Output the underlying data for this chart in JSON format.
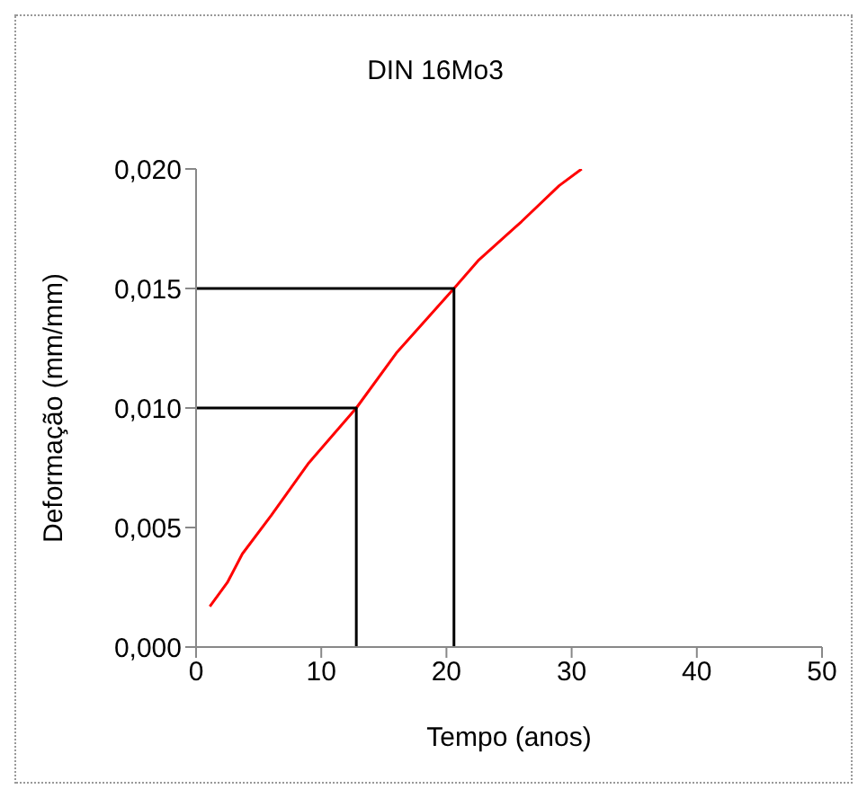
{
  "chart_data": {
    "type": "line",
    "title": "DIN 16Mo3",
    "xlabel": "Tempo (anos)",
    "ylabel": "Deformação (mm/mm)",
    "xlim": [
      0,
      50
    ],
    "xticks": [
      0,
      10,
      20,
      30,
      40,
      50
    ],
    "ylim": [
      0,
      0.02
    ],
    "yticks": [
      {
        "value": 0,
        "label": "0,000"
      },
      {
        "value": 0.005,
        "label": "0,005"
      },
      {
        "value": 0.01,
        "label": "0,010"
      },
      {
        "value": 0.015,
        "label": "0,015"
      },
      {
        "value": 0.02,
        "label": "0,020"
      }
    ],
    "marker": "none",
    "line_style": "solid",
    "series": [
      {
        "color": "#ff0000",
        "x": [
          1.1,
          2.5,
          3.7,
          6,
          9,
          12.8,
          16,
          20.6,
          22.6,
          26,
          29,
          30.8
        ],
        "values": [
          0.0017,
          0.0027,
          0.0039,
          0.0055,
          0.0077,
          0.01,
          0.0123,
          0.015,
          0.0162,
          0.0178,
          0.0193,
          0.02
        ]
      },
      {
        "color": "#000000",
        "x": [
          0,
          12.8,
          12.8
        ],
        "values": [
          0.01,
          0.01,
          0
        ]
      },
      {
        "color": "#000000",
        "x": [
          0,
          20.6,
          20.6
        ],
        "values": [
          0.015,
          0.015,
          0
        ]
      }
    ]
  }
}
